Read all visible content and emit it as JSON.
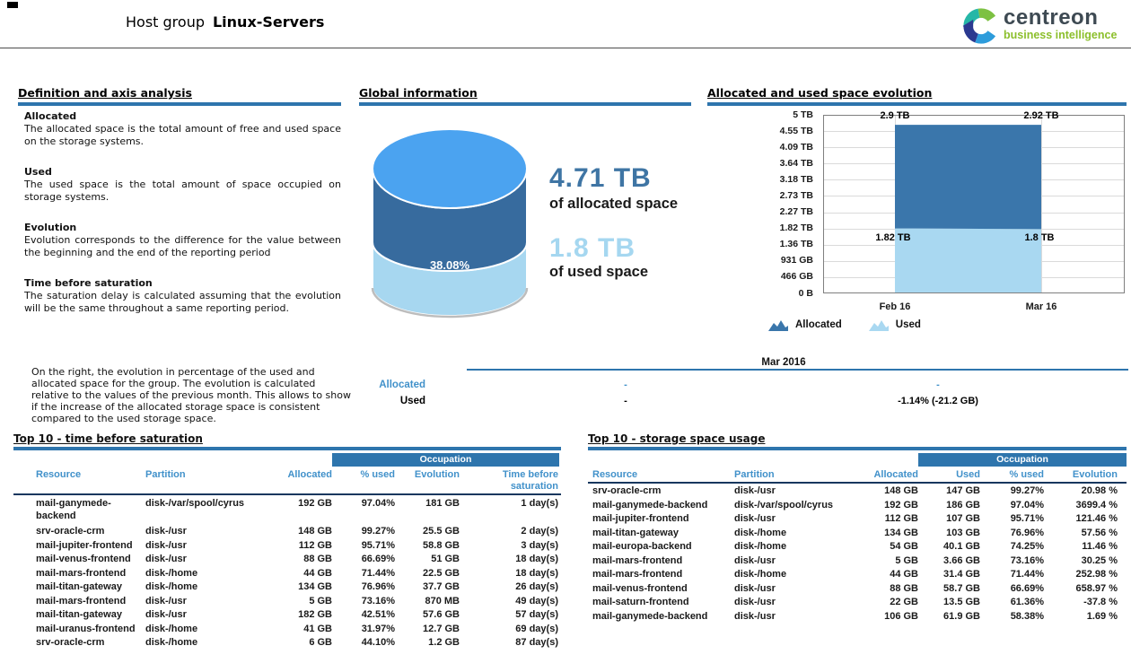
{
  "header": {
    "title_prefix": "Host group",
    "title_group": "Linux-Servers",
    "logo": {
      "brand": "centreon",
      "tagline": "business intelligence"
    }
  },
  "palette": {
    "section_bar_blue": "#2E75AD",
    "column_header_blue": "#4191CA",
    "header_underline_navy": "#17375E",
    "allocated_dark_blue": "#3A76AB",
    "used_light_blue": "#A9D8F1",
    "cylinder_top_blue": "#4BA3F0",
    "cylinder_dark_band": "#376B9E",
    "cylinder_light_band": "#A7D7F0",
    "big_number_blue": "#3F75A4",
    "big_number_light": "#A5D7F0",
    "logo_green": "#7DC142",
    "logo_teal": "#26B7A7",
    "logo_dark_blue": "#2B3990",
    "logo_medium_blue": "#2D9CDB",
    "logo_text_gray": "#3E4A53",
    "logo_tagline_green": "#8CBF2C"
  },
  "definitions": {
    "section_title": "Definition and axis analysis",
    "items": [
      {
        "term": "Allocated",
        "text": "The allocated space is the total amount of free and used space on the storage systems."
      },
      {
        "term": "Used",
        "text": "The used space is the total amount of space occupied on storage systems."
      },
      {
        "term": "Evolution",
        "text": "Evolution corresponds to the difference for the value between the beginning and the end of the reporting period"
      },
      {
        "term": "Time before saturation",
        "text": "The saturation delay is calculated assuming that the evolution will be the same throughout a same reporting period."
      }
    ]
  },
  "global_info": {
    "section_title": "Global information",
    "pct_label": "38.08%",
    "allocated_value": "4.71 TB",
    "allocated_label": "of allocated space",
    "used_value": "1.8 TB",
    "used_label": "of used space"
  },
  "chart_data": {
    "type": "area",
    "title": "Allocated and used space evolution",
    "stacked": true,
    "x": [
      "Feb 16",
      "Mar 16"
    ],
    "ylim_tb": [
      0,
      5
    ],
    "y_ticks": [
      "5 TB",
      "4.55 TB",
      "4.09 TB",
      "3.64 TB",
      "3.18 TB",
      "2.73 TB",
      "2.27 TB",
      "1.82 TB",
      "1.36 TB",
      "931 GB",
      "466 GB",
      "0 B"
    ],
    "series": [
      {
        "name": "Allocated",
        "values_tb": [
          2.9,
          2.92
        ],
        "point_labels": [
          "2.9 TB",
          "2.92 TB"
        ],
        "color": "#3A76AB"
      },
      {
        "name": "Used",
        "values_tb": [
          1.82,
          1.8
        ],
        "point_labels": [
          "1.82 TB",
          "1.8 TB"
        ],
        "color": "#A9D8F1"
      }
    ],
    "legend": [
      "Allocated",
      "Used"
    ],
    "legend_position": "bottom",
    "grid": true
  },
  "monthly_summary": {
    "note": "On the right, the evolution in percentage of the used and allocated space for the group. The evolution is calculated relative to the values of the previous month. This allows to show if the increase of the allocated storage space is consistent compared to the used storage space.",
    "month": "Mar 2016",
    "rows": [
      {
        "label": "Allocated",
        "col1": "-",
        "col2": "-"
      },
      {
        "label": "Used",
        "col1": "-",
        "col2": "-1.14% (-21.2 GB)"
      }
    ]
  },
  "saturation_table": {
    "title": "Top 10 - time before saturation",
    "occupation_label": "Occupation",
    "columns": [
      "Resource",
      "Partition",
      "Allocated",
      "% used",
      "Evolution",
      "Time before saturation"
    ],
    "rows": [
      [
        "mail-ganymede-backend",
        "disk-/var/spool/cyrus",
        "192 GB",
        "97.04%",
        "181 GB",
        "1 day(s)"
      ],
      [
        "srv-oracle-crm",
        "disk-/usr",
        "148 GB",
        "99.27%",
        "25.5 GB",
        "2 day(s)"
      ],
      [
        "mail-jupiter-frontend",
        "disk-/usr",
        "112 GB",
        "95.71%",
        "58.8 GB",
        "3 day(s)"
      ],
      [
        "mail-venus-frontend",
        "disk-/usr",
        "88 GB",
        "66.69%",
        "51 GB",
        "18 day(s)"
      ],
      [
        "mail-mars-frontend",
        "disk-/home",
        "44 GB",
        "71.44%",
        "22.5 GB",
        "18 day(s)"
      ],
      [
        "mail-titan-gateway",
        "disk-/home",
        "134 GB",
        "76.96%",
        "37.7 GB",
        "26 day(s)"
      ],
      [
        "mail-mars-frontend",
        "disk-/usr",
        "5 GB",
        "73.16%",
        "870 MB",
        "49 day(s)"
      ],
      [
        "mail-titan-gateway",
        "disk-/usr",
        "182 GB",
        "42.51%",
        "57.6 GB",
        "57 day(s)"
      ],
      [
        "mail-uranus-frontend",
        "disk-/home",
        "41 GB",
        "31.97%",
        "12.7 GB",
        "69 day(s)"
      ],
      [
        "srv-oracle-crm",
        "disk-/home",
        "6 GB",
        "44.10%",
        "1.2 GB",
        "87 day(s)"
      ]
    ]
  },
  "usage_table": {
    "title": "Top 10 - storage space usage",
    "occupation_label": "Occupation",
    "columns": [
      "Resource",
      "Partition",
      "Allocated",
      "Used",
      "% used",
      "Evolution"
    ],
    "rows": [
      [
        "srv-oracle-crm",
        "disk-/usr",
        "148 GB",
        "147 GB",
        "99.27%",
        "20.98 %"
      ],
      [
        "mail-ganymede-backend",
        "disk-/var/spool/cyrus",
        "192 GB",
        "186 GB",
        "97.04%",
        "3699.4 %"
      ],
      [
        "mail-jupiter-frontend",
        "disk-/usr",
        "112 GB",
        "107 GB",
        "95.71%",
        "121.46 %"
      ],
      [
        "mail-titan-gateway",
        "disk-/home",
        "134 GB",
        "103 GB",
        "76.96%",
        "57.56 %"
      ],
      [
        "mail-europa-backend",
        "disk-/home",
        "54 GB",
        "40.1 GB",
        "74.25%",
        "11.46 %"
      ],
      [
        "mail-mars-frontend",
        "disk-/usr",
        "5 GB",
        "3.66 GB",
        "73.16%",
        "30.25 %"
      ],
      [
        "mail-mars-frontend",
        "disk-/home",
        "44 GB",
        "31.4 GB",
        "71.44%",
        "252.98 %"
      ],
      [
        "mail-venus-frontend",
        "disk-/usr",
        "88 GB",
        "58.7 GB",
        "66.69%",
        "658.97 %"
      ],
      [
        "mail-saturn-frontend",
        "disk-/usr",
        "22 GB",
        "13.5 GB",
        "61.36%",
        "-37.8 %"
      ],
      [
        "mail-ganymede-backend",
        "disk-/usr",
        "106 GB",
        "61.9 GB",
        "58.38%",
        "1.69 %"
      ]
    ]
  }
}
